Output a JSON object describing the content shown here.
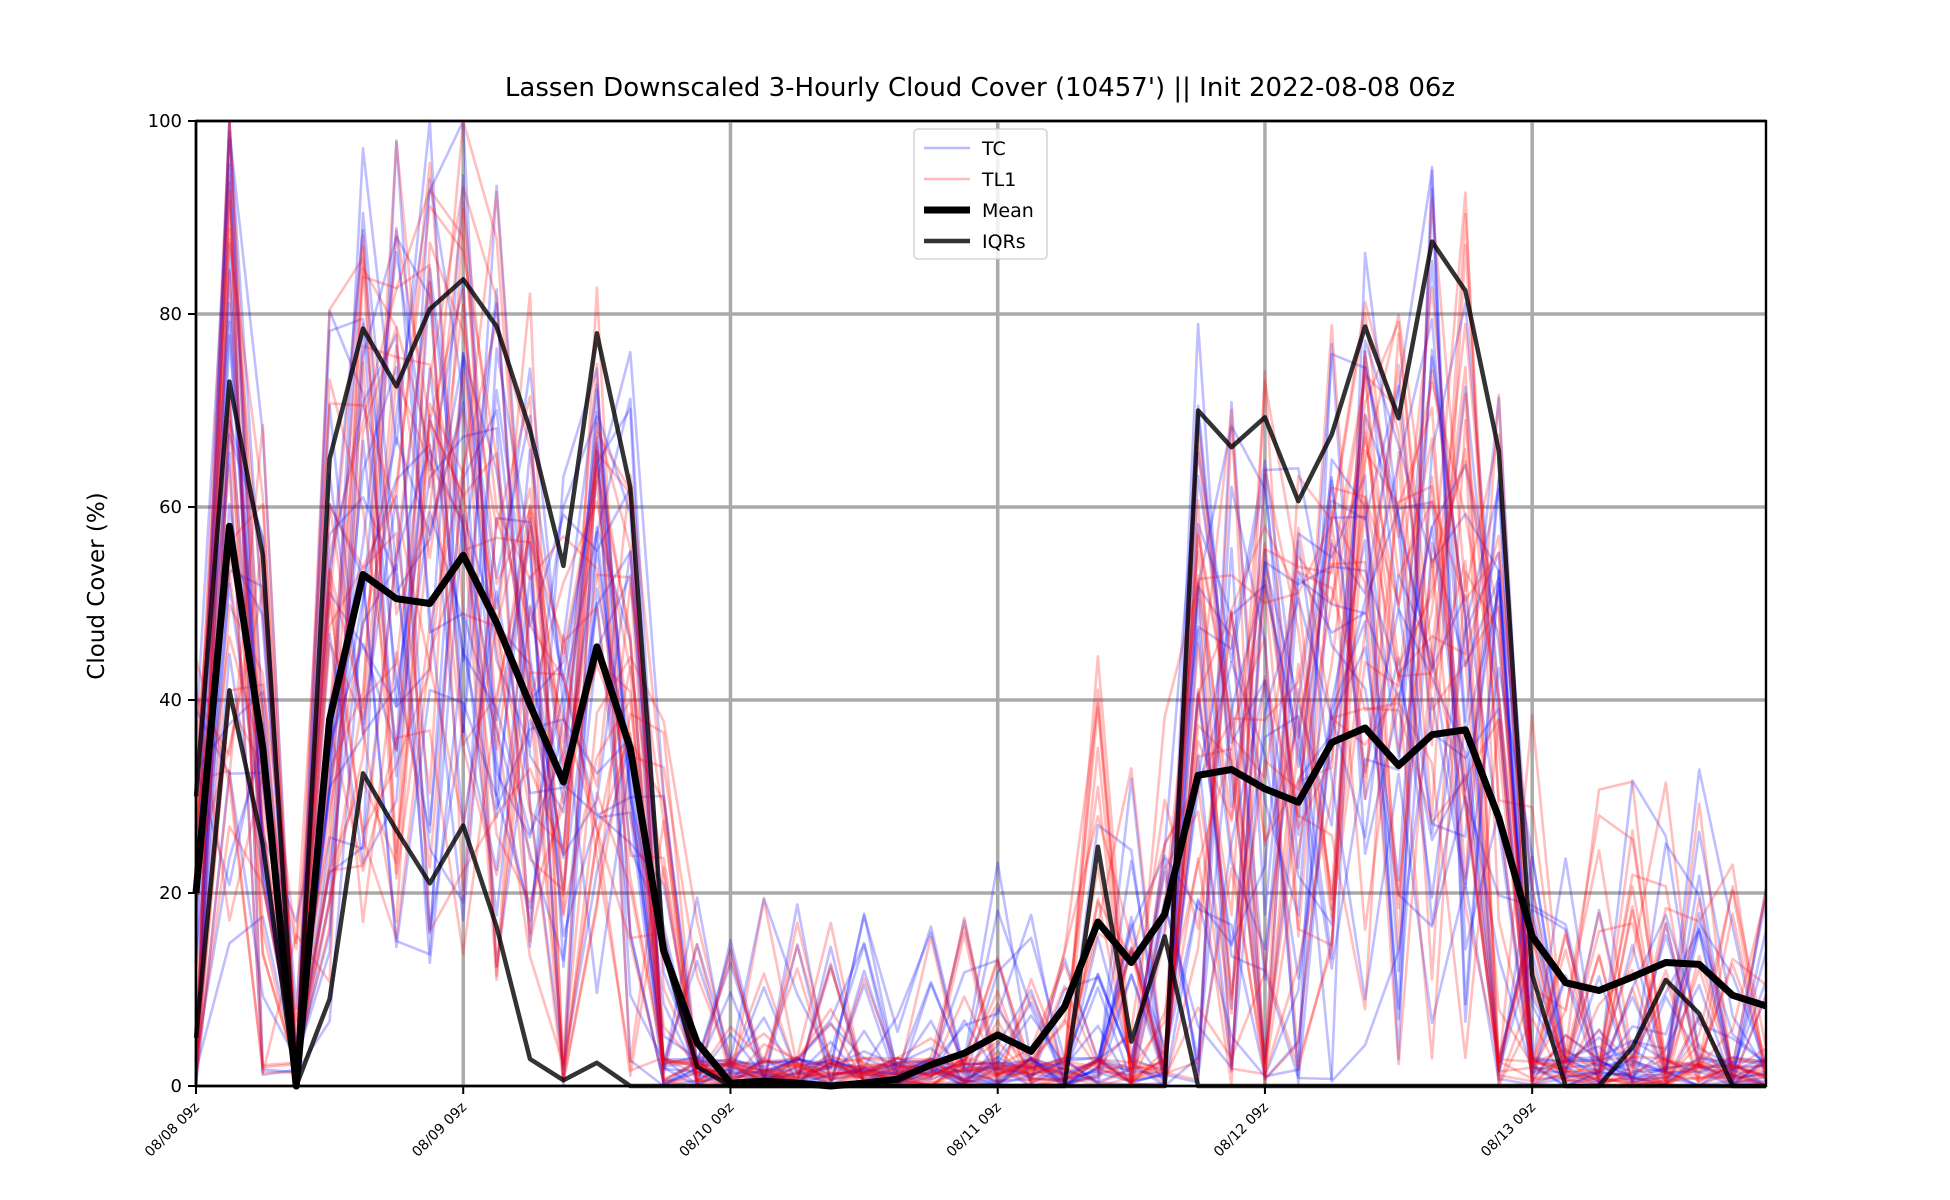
{
  "chart_data": {
    "type": "line",
    "title": "Lassen Downscaled 3-Hourly Cloud Cover (10457') || Init 2022-08-08 06z",
    "ylabel": "Cloud Cover (%)",
    "xlabel": "",
    "ylim": [
      0,
      100
    ],
    "yticks": [
      0,
      20,
      40,
      60,
      80,
      100
    ],
    "x_start": "08/08 09z",
    "x_step_hours": 3,
    "xticks": [
      "08/08 09z",
      "08/09 09z",
      "08/10 09z",
      "08/11 09z",
      "08/12 09z",
      "08/13 09z"
    ],
    "grid": true,
    "legend_position": "top-center",
    "colors": {
      "TC": "#0000ff",
      "TL1": "#ff0000",
      "Mean": "#000000",
      "IQRs": "#000000"
    },
    "series": [
      {
        "name": "Mean",
        "values": [
          20,
          58,
          35,
          0,
          38,
          53,
          50.5,
          50,
          55,
          48,
          39.5,
          31.5,
          45.5,
          35,
          14,
          4.5,
          0.3,
          0.5,
          0.3,
          0,
          0.3,
          0.7,
          2.2,
          3.4,
          5.3,
          3.6,
          8.2,
          17,
          12.8,
          17.8,
          32.2,
          32.8,
          30.8,
          29.4,
          35.6,
          37.1,
          33.2,
          36.4,
          36.9,
          27.8,
          15.5,
          10.7,
          9.9,
          11.3,
          12.8,
          12.6,
          9.4,
          8.3
        ]
      },
      {
        "name": "IQRs",
        "values": [
          30,
          73,
          55,
          0,
          65,
          78.5,
          72.5,
          80.5,
          83.6,
          78.7,
          68,
          53.9,
          78,
          62,
          14,
          2,
          0,
          0,
          0,
          0,
          0,
          0,
          0,
          0,
          0,
          0,
          0,
          0,
          0,
          0,
          70,
          66.2,
          69.3,
          60.6,
          67.5,
          78.7,
          69.2,
          87.5,
          82.4,
          65.8,
          11.5,
          0,
          0,
          0,
          0,
          0,
          0,
          0
        ]
      },
      {
        "name": "IQRs",
        "values": [
          5,
          41,
          25,
          0,
          9,
          32.4,
          26.5,
          21,
          27,
          16.5,
          2.8,
          0.6,
          2.4,
          0,
          0,
          0,
          0,
          0,
          0,
          0,
          0,
          0,
          0,
          0,
          0,
          0,
          0,
          24.8,
          4.6,
          15.5,
          0,
          0,
          0,
          0,
          0,
          0,
          0,
          0,
          0,
          0,
          0,
          0,
          0,
          4,
          11,
          7.5,
          0,
          0
        ]
      }
    ],
    "ensemble": {
      "members_per_group": 26,
      "groups": [
        "TC",
        "TL1"
      ],
      "note": "individual ensemble member traces drawn semi-transparent behind the mean and IQR lines"
    }
  },
  "legend": {
    "items": [
      {
        "label": "TC",
        "color": "#0000ff",
        "style": "thin"
      },
      {
        "label": "TL1",
        "color": "#ff0000",
        "style": "thin"
      },
      {
        "label": "Mean",
        "color": "#000000",
        "style": "thick"
      },
      {
        "label": "IQRs",
        "color": "#000000",
        "style": "medium"
      }
    ]
  }
}
